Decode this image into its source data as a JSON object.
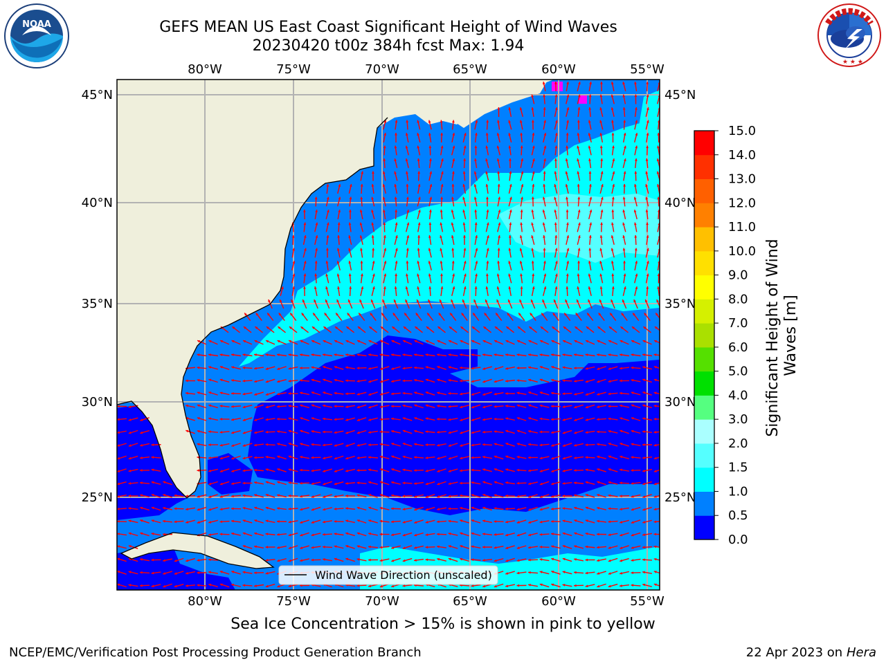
{
  "title": {
    "line1": "GEFS MEAN US East Coast Significant Height of Wind Waves",
    "line2": "20230420 t00z 384h fcst   Max: 1.94"
  },
  "logos": {
    "left": {
      "name": "noaa-logo",
      "text": "NOAA",
      "ring_text": "NATIONAL OCEANIC AND ATMOSPHERIC ADMINISTRATION · U.S. DEPARTMENT OF COMMERCE"
    },
    "right": {
      "name": "nws-logo",
      "ring_text": "NATIONAL WEATHER SERVICE"
    }
  },
  "map": {
    "lon_ticks": [
      "80°W",
      "75°W",
      "70°W",
      "65°W",
      "60°W",
      "55°W"
    ],
    "lat_ticks": [
      "45°N",
      "40°N",
      "35°N",
      "30°N",
      "25°N"
    ],
    "colors": {
      "land": "#efefdc",
      "wave_0_0_5": "#0000ff",
      "wave_0_5_1_0": "#0080ff",
      "wave_1_0_1_5": "#00ffff",
      "wave_1_5_2_0": "#55ffff",
      "ice": "#ff00ff",
      "arrow": "#ff0000",
      "grid": "#b2b2b2"
    },
    "legend_label": "Wind Wave Direction (unscaled)"
  },
  "colorbar": {
    "label": "Significant Height of Wind Waves [m]",
    "ticks": [
      "0.0",
      "0.5",
      "1.0",
      "1.5",
      "2.0",
      "3.0",
      "4.0",
      "5.0",
      "6.0",
      "7.0",
      "8.0",
      "9.0",
      "10.0",
      "11.0",
      "12.0",
      "13.0",
      "14.0",
      "15.0"
    ],
    "colors": [
      "#0000ff",
      "#0080ff",
      "#00ffff",
      "#55ffff",
      "#aaffff",
      "#55ff80",
      "#00e000",
      "#55e000",
      "#aae000",
      "#d5f000",
      "#ffff00",
      "#ffe000",
      "#ffc000",
      "#ff8000",
      "#ff6000",
      "#ff3000",
      "#ff0000"
    ]
  },
  "footer": {
    "ice_note": "Sea Ice Concentration > 15% is shown in pink to yellow",
    "credit_left": "NCEP/EMC/Verification Post Processing Product Generation Branch",
    "credit_right_date": "22 Apr 2023 on ",
    "credit_right_host": "Hera"
  }
}
